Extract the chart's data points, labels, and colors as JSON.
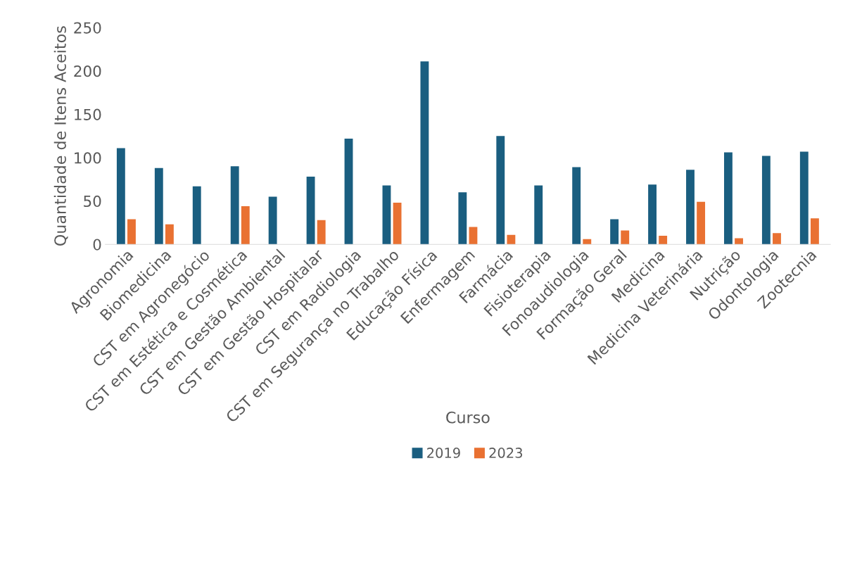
{
  "chart_data": {
    "type": "bar",
    "xlabel": "Curso",
    "ylabel": "Quantidade de Itens Aceitos",
    "categories": [
      "Agronomia",
      "Biomedicina",
      "CST em Agronegócio",
      "CST em Estética e Cosmética",
      "CST em Gestão Ambiental",
      "CST em Gestão Hospitalar",
      "CST em Radiologia",
      "CST em Segurança no Trabalho",
      "Educação Física",
      "Enfermagem",
      "Farmácia",
      "Fisioterapia",
      "Fonoaudiologia",
      "Formação Geral",
      "Medicina",
      "Medicina Veterinária",
      "Nutrição",
      "Odontologia",
      "Zootecnia"
    ],
    "series": [
      {
        "name": "2019",
        "color": "#1a5e80",
        "values": [
          111,
          88,
          67,
          90,
          55,
          78,
          122,
          68,
          211,
          60,
          125,
          68,
          89,
          29,
          69,
          86,
          106,
          102,
          107
        ]
      },
      {
        "name": "2023",
        "color": "#e97132",
        "values": [
          29,
          23,
          null,
          44,
          null,
          28,
          null,
          48,
          null,
          20,
          11,
          null,
          6,
          16,
          10,
          49,
          7,
          13,
          30
        ]
      }
    ],
    "ylim": [
      0,
      250
    ],
    "yticks": [
      0,
      50,
      100,
      150,
      200,
      250
    ],
    "grid": false,
    "legend": "bottom"
  }
}
